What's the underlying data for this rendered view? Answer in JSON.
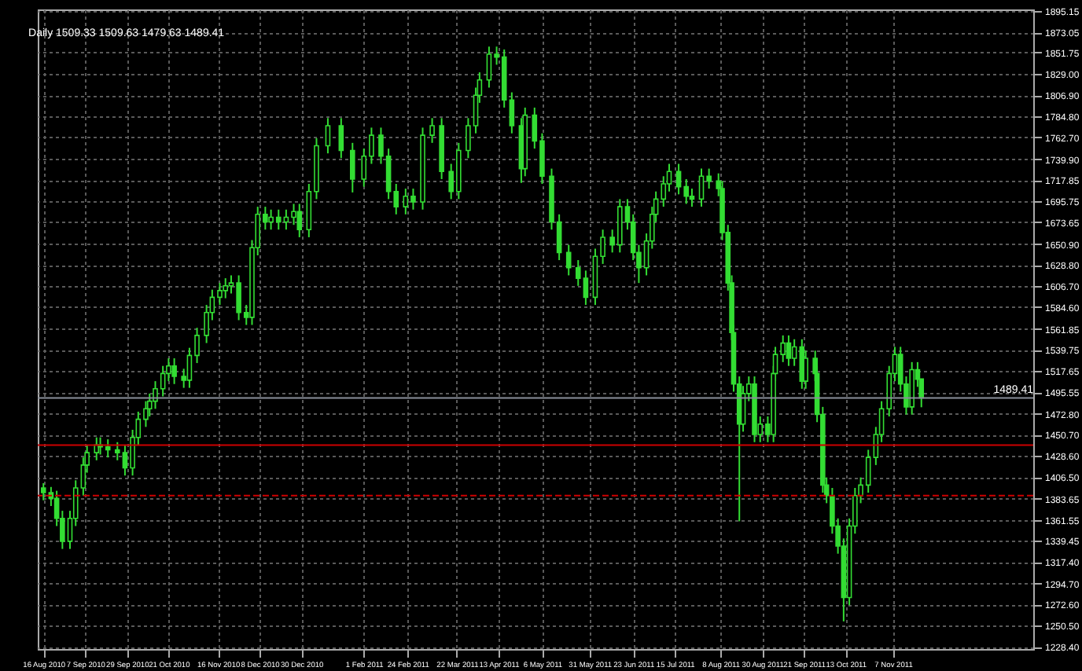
{
  "chart_data": {
    "type": "candlestick",
    "title": "Daily 1509.33 1509.63 1479.63 1489.41",
    "x": [
      "2010-08-16",
      "2010-08-20",
      "2010-08-23",
      "2010-08-26",
      "2010-08-30",
      "2010-09-02",
      "2010-09-06",
      "2010-09-08",
      "2010-09-13",
      "2010-09-15",
      "2010-09-19",
      "2010-09-24",
      "2010-09-28",
      "2010-10-02",
      "2010-10-05",
      "2010-10-09",
      "2010-10-11",
      "2010-10-14",
      "2010-10-18",
      "2010-10-21",
      "2010-10-24",
      "2010-10-29",
      "2010-11-01",
      "2010-11-05",
      "2010-11-10",
      "2010-11-13",
      "2010-11-17",
      "2010-11-20",
      "2010-11-23",
      "2010-11-27",
      "2010-12-01",
      "2010-12-04",
      "2010-12-07",
      "2010-12-11",
      "2010-12-14",
      "2010-12-18",
      "2010-12-22",
      "2010-12-26",
      "2010-12-29",
      "2011-01-03",
      "2011-01-07",
      "2011-01-13",
      "2011-01-20",
      "2011-01-26",
      "2011-02-01",
      "2011-02-05",
      "2011-02-10",
      "2011-02-14",
      "2011-02-18",
      "2011-02-23",
      "2011-02-27",
      "2011-03-04",
      "2011-03-09",
      "2011-03-14",
      "2011-03-19",
      "2011-03-23",
      "2011-03-28",
      "2011-04-01",
      "2011-04-03",
      "2011-04-08",
      "2011-04-12",
      "2011-04-16",
      "2011-04-20",
      "2011-04-25",
      "2011-04-27",
      "2011-05-02",
      "2011-05-06",
      "2011-05-11",
      "2011-05-15",
      "2011-05-20",
      "2011-05-25",
      "2011-05-29",
      "2011-06-03",
      "2011-06-07",
      "2011-06-12",
      "2011-06-16",
      "2011-06-20",
      "2011-06-23",
      "2011-06-26",
      "2011-06-30",
      "2011-07-03",
      "2011-07-05",
      "2011-07-09",
      "2011-07-12",
      "2011-07-17",
      "2011-07-21",
      "2011-07-24",
      "2011-07-29",
      "2011-08-02",
      "2011-08-07",
      "2011-08-09",
      "2011-08-12",
      "2011-08-14",
      "2011-08-15",
      "2011-08-18",
      "2011-08-20",
      "2011-08-23",
      "2011-08-26",
      "2011-08-29",
      "2011-09-02",
      "2011-09-05",
      "2011-09-06",
      "2011-09-10",
      "2011-09-13",
      "2011-09-16",
      "2011-09-20",
      "2011-09-22",
      "2011-09-27",
      "2011-09-28",
      "2011-10-01",
      "2011-10-03",
      "2011-10-06",
      "2011-10-09",
      "2011-10-12",
      "2011-10-15",
      "2011-10-18",
      "2011-10-21",
      "2011-10-25",
      "2011-10-29",
      "2011-11-01",
      "2011-11-05",
      "2011-11-08",
      "2011-11-11",
      "2011-11-14",
      "2011-11-17",
      "2011-11-20",
      "2011-11-22"
    ],
    "ohlc": [
      [
        1395,
        1400,
        1382,
        1390
      ],
      [
        1390,
        1396,
        1376,
        1384
      ],
      [
        1384,
        1392,
        1355,
        1363
      ],
      [
        1363,
        1371,
        1331,
        1339
      ],
      [
        1339,
        1371,
        1331,
        1363
      ],
      [
        1363,
        1403,
        1355,
        1395
      ],
      [
        1395,
        1427,
        1387,
        1419
      ],
      [
        1419,
        1440,
        1411,
        1432
      ],
      [
        1432,
        1448,
        1424,
        1440
      ],
      [
        1440,
        1448,
        1430,
        1438
      ],
      [
        1438,
        1446,
        1427,
        1435
      ],
      [
        1435,
        1443,
        1424,
        1432
      ],
      [
        1432,
        1440,
        1408,
        1416
      ],
      [
        1416,
        1456,
        1408,
        1448
      ],
      [
        1448,
        1475,
        1440,
        1467
      ],
      [
        1467,
        1486,
        1459,
        1478
      ],
      [
        1478,
        1494,
        1470,
        1486
      ],
      [
        1486,
        1507,
        1478,
        1499
      ],
      [
        1499,
        1523,
        1491,
        1515
      ],
      [
        1515,
        1531,
        1507,
        1523
      ],
      [
        1523,
        1531,
        1504,
        1512
      ],
      [
        1512,
        1520,
        1500,
        1508
      ],
      [
        1508,
        1542,
        1500,
        1534
      ],
      [
        1534,
        1563,
        1526,
        1555
      ],
      [
        1555,
        1587,
        1547,
        1579
      ],
      [
        1579,
        1603,
        1571,
        1595
      ],
      [
        1595,
        1610,
        1587,
        1602
      ],
      [
        1602,
        1615,
        1594,
        1607
      ],
      [
        1607,
        1618,
        1599,
        1610
      ],
      [
        1610,
        1618,
        1571,
        1579
      ],
      [
        1579,
        1587,
        1566,
        1574
      ],
      [
        1574,
        1655,
        1566,
        1647
      ],
      [
        1647,
        1690,
        1639,
        1682
      ],
      [
        1682,
        1690,
        1666,
        1674
      ],
      [
        1674,
        1687,
        1666,
        1679
      ],
      [
        1679,
        1687,
        1666,
        1674
      ],
      [
        1674,
        1687,
        1666,
        1679
      ],
      [
        1679,
        1693,
        1671,
        1685
      ],
      [
        1685,
        1693,
        1658,
        1666
      ],
      [
        1666,
        1714,
        1658,
        1706
      ],
      [
        1706,
        1762,
        1698,
        1754
      ],
      [
        1754,
        1783,
        1746,
        1775
      ],
      [
        1775,
        1783,
        1741,
        1749
      ],
      [
        1749,
        1757,
        1705,
        1719
      ],
      [
        1719,
        1751,
        1711,
        1743
      ],
      [
        1743,
        1773,
        1735,
        1765
      ],
      [
        1765,
        1773,
        1735,
        1743
      ],
      [
        1743,
        1751,
        1698,
        1706
      ],
      [
        1706,
        1714,
        1682,
        1690
      ],
      [
        1690,
        1709,
        1682,
        1701
      ],
      [
        1701,
        1709,
        1687,
        1695
      ],
      [
        1695,
        1773,
        1687,
        1765
      ],
      [
        1765,
        1783,
        1757,
        1775
      ],
      [
        1775,
        1783,
        1719,
        1727
      ],
      [
        1727,
        1735,
        1698,
        1706
      ],
      [
        1706,
        1757,
        1698,
        1749
      ],
      [
        1749,
        1783,
        1741,
        1775
      ],
      [
        1775,
        1815,
        1767,
        1807
      ],
      [
        1807,
        1831,
        1799,
        1823
      ],
      [
        1823,
        1858,
        1815,
        1850
      ],
      [
        1850,
        1858,
        1839,
        1847
      ],
      [
        1847,
        1855,
        1794,
        1802
      ],
      [
        1802,
        1810,
        1767,
        1775
      ],
      [
        1775,
        1783,
        1715,
        1730
      ],
      [
        1730,
        1794,
        1722,
        1786
      ],
      [
        1786,
        1794,
        1751,
        1759
      ],
      [
        1759,
        1767,
        1714,
        1722
      ],
      [
        1722,
        1730,
        1666,
        1674
      ],
      [
        1674,
        1682,
        1634,
        1642
      ],
      [
        1642,
        1650,
        1618,
        1626
      ],
      [
        1626,
        1634,
        1607,
        1615
      ],
      [
        1615,
        1623,
        1587,
        1595
      ],
      [
        1595,
        1646,
        1587,
        1638
      ],
      [
        1638,
        1666,
        1630,
        1658
      ],
      [
        1658,
        1666,
        1642,
        1650
      ],
      [
        1650,
        1698,
        1642,
        1690
      ],
      [
        1690,
        1698,
        1666,
        1674
      ],
      [
        1674,
        1682,
        1634,
        1642
      ],
      [
        1642,
        1650,
        1610,
        1626
      ],
      [
        1626,
        1662,
        1618,
        1654
      ],
      [
        1654,
        1690,
        1646,
        1682
      ],
      [
        1682,
        1706,
        1674,
        1698
      ],
      [
        1698,
        1722,
        1690,
        1714
      ],
      [
        1714,
        1735,
        1706,
        1727
      ],
      [
        1727,
        1735,
        1703,
        1711
      ],
      [
        1711,
        1719,
        1693,
        1701
      ],
      [
        1701,
        1709,
        1690,
        1698
      ],
      [
        1698,
        1730,
        1690,
        1722
      ],
      [
        1722,
        1730,
        1709,
        1717
      ],
      [
        1717,
        1725,
        1701,
        1709
      ],
      [
        1709,
        1717,
        1655,
        1663
      ],
      [
        1663,
        1671,
        1602,
        1610
      ],
      [
        1610,
        1618,
        1550,
        1558
      ],
      [
        1558,
        1566,
        1496,
        1504
      ],
      [
        1504,
        1512,
        1360,
        1462
      ],
      [
        1462,
        1502,
        1454,
        1494
      ],
      [
        1494,
        1512,
        1486,
        1504
      ],
      [
        1504,
        1512,
        1443,
        1451
      ],
      [
        1451,
        1470,
        1443,
        1462
      ],
      [
        1462,
        1470,
        1443,
        1451
      ],
      [
        1451,
        1523,
        1443,
        1515
      ],
      [
        1515,
        1543,
        1507,
        1535
      ],
      [
        1535,
        1555,
        1527,
        1547
      ],
      [
        1547,
        1555,
        1523,
        1531
      ],
      [
        1531,
        1551,
        1523,
        1543
      ],
      [
        1543,
        1551,
        1499,
        1507
      ],
      [
        1507,
        1539,
        1499,
        1531
      ],
      [
        1531,
        1539,
        1507,
        1515
      ],
      [
        1515,
        1523,
        1464,
        1472
      ],
      [
        1472,
        1480,
        1390,
        1398
      ],
      [
        1398,
        1406,
        1379,
        1387
      ],
      [
        1387,
        1395,
        1347,
        1355
      ],
      [
        1355,
        1363,
        1326,
        1334
      ],
      [
        1334,
        1342,
        1255,
        1280
      ],
      [
        1280,
        1363,
        1272,
        1355
      ],
      [
        1355,
        1395,
        1347,
        1387
      ],
      [
        1387,
        1406,
        1379,
        1398
      ],
      [
        1398,
        1435,
        1390,
        1427
      ],
      [
        1427,
        1459,
        1419,
        1451
      ],
      [
        1451,
        1486,
        1443,
        1478
      ],
      [
        1478,
        1523,
        1470,
        1515
      ],
      [
        1515,
        1543,
        1507,
        1535
      ],
      [
        1535,
        1543,
        1496,
        1504
      ],
      [
        1504,
        1512,
        1472,
        1480
      ],
      [
        1480,
        1527,
        1472,
        1519
      ],
      [
        1519,
        1527,
        1501,
        1509
      ],
      [
        1509.33,
        1509.63,
        1479.63,
        1489.41
      ]
    ],
    "color": "#33dd33",
    "xlim": [
      "2010-08-13",
      "2012-01-20"
    ],
    "ylim": [
      1226,
      1897
    ],
    "xticks": [
      {
        "value": "2010-08-16",
        "label": "16 Aug 2010"
      },
      {
        "value": "2010-09-07",
        "label": "7 Sep 2010"
      },
      {
        "value": "2010-09-29",
        "label": "29 Sep 2010"
      },
      {
        "value": "2010-10-21",
        "label": "21 Oct 2010"
      },
      {
        "value": "2010-11-16",
        "label": "16 Nov 2010"
      },
      {
        "value": "2010-12-08",
        "label": "8 Dec 2010"
      },
      {
        "value": "2010-12-30",
        "label": "30 Dec 2010"
      },
      {
        "value": "2011-02-01",
        "label": "1 Feb 2011"
      },
      {
        "value": "2011-02-24",
        "label": "24 Feb 2011"
      },
      {
        "value": "2011-03-22",
        "label": "22 Mar 2011"
      },
      {
        "value": "2011-04-13",
        "label": "13 Apr 2011"
      },
      {
        "value": "2011-05-06",
        "label": "6 May 2011"
      },
      {
        "value": "2011-05-31",
        "label": "31 May 2011"
      },
      {
        "value": "2011-06-23",
        "label": "23 Jun 2011"
      },
      {
        "value": "2011-07-15",
        "label": "15 Jul 2011"
      },
      {
        "value": "2011-08-08",
        "label": "8 Aug 2011"
      },
      {
        "value": "2011-08-30",
        "label": "30 Aug 2011"
      },
      {
        "value": "2011-09-21",
        "label": "21 Sep 2011"
      },
      {
        "value": "2011-10-13",
        "label": "13 Oct 2011"
      },
      {
        "value": "2011-11-07",
        "label": "7 Nov 2011"
      }
    ],
    "yticks": [
      {
        "value": 1895.15,
        "label": "1895.15"
      },
      {
        "value": 1873.05,
        "label": "1873.05"
      },
      {
        "value": 1851.75,
        "label": "1851.75"
      },
      {
        "value": 1829,
        "label": "1829.00"
      },
      {
        "value": 1806.9,
        "label": "1806.90"
      },
      {
        "value": 1784.8,
        "label": "1784.80"
      },
      {
        "value": 1762.7,
        "label": "1762.70"
      },
      {
        "value": 1739.9,
        "label": "1739.90"
      },
      {
        "value": 1717.85,
        "label": "1717.85"
      },
      {
        "value": 1695.75,
        "label": "1695.75"
      },
      {
        "value": 1673.65,
        "label": "1673.65"
      },
      {
        "value": 1650.9,
        "label": "1650.90"
      },
      {
        "value": 1628.8,
        "label": "1628.80"
      },
      {
        "value": 1606.7,
        "label": "1606.70"
      },
      {
        "value": 1584.6,
        "label": "1584.60"
      },
      {
        "value": 1561.85,
        "label": "1561.85"
      },
      {
        "value": 1539.75,
        "label": "1539.75"
      },
      {
        "value": 1517.65,
        "label": "1517.65"
      },
      {
        "value": 1495.55,
        "label": "1495.55"
      },
      {
        "value": 1472.8,
        "label": "1472.80"
      },
      {
        "value": 1450.7,
        "label": "1450.70"
      },
      {
        "value": 1428.6,
        "label": "1428.60"
      },
      {
        "value": 1406.5,
        "label": "1406.50"
      },
      {
        "value": 1383.65,
        "label": "1383.65"
      },
      {
        "value": 1361.55,
        "label": "1361.55"
      },
      {
        "value": 1339.45,
        "label": "1339.45"
      },
      {
        "value": 1317.4,
        "label": "1317.40"
      },
      {
        "value": 1294.7,
        "label": "1294.70"
      },
      {
        "value": 1272.6,
        "label": "1272.60"
      },
      {
        "value": 1250.5,
        "label": "1250.50"
      },
      {
        "value": 1228.4,
        "label": "1228.40"
      }
    ],
    "grid": true,
    "ref_lines": [
      {
        "axis": "y",
        "value": 1489.41,
        "label": "1489.41",
        "color": "#8a8f9a"
      },
      {
        "axis": "y",
        "value": 1440,
        "color": "#cc0000"
      },
      {
        "axis": "y",
        "value": 1387,
        "color": "#cc0000",
        "line_style": "dashed"
      }
    ]
  }
}
